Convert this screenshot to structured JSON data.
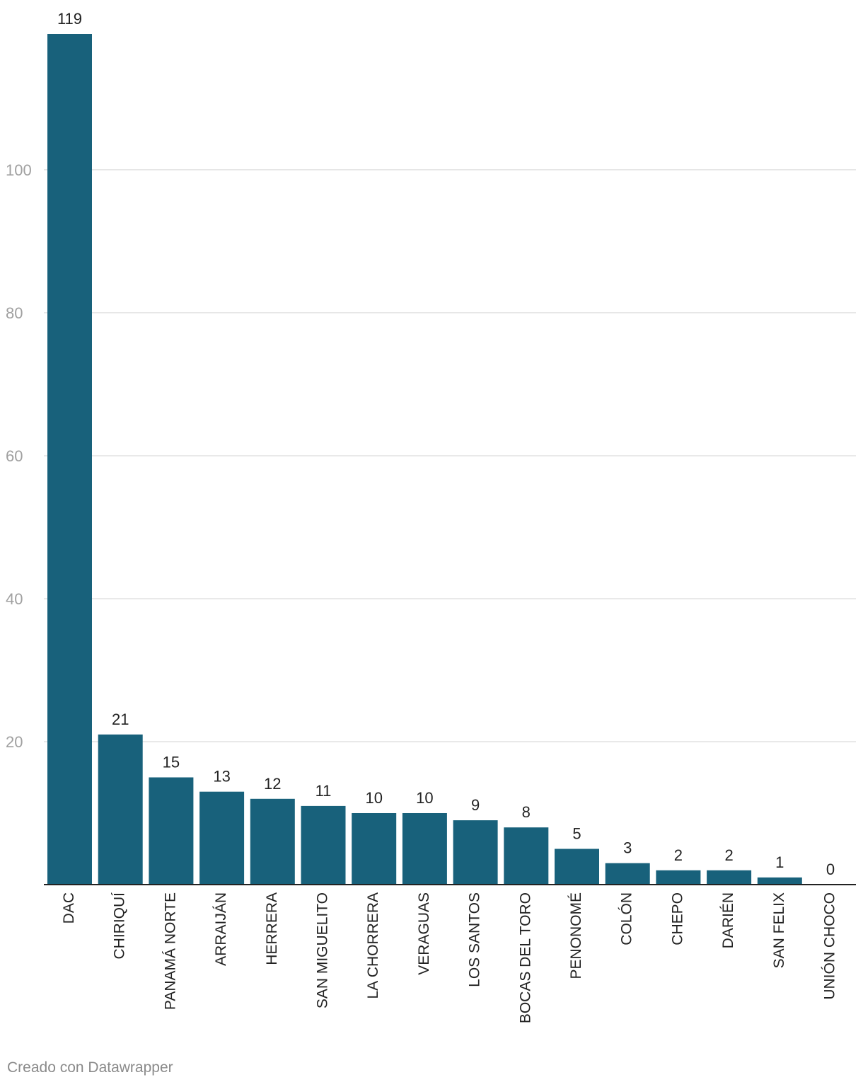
{
  "chart_data": {
    "type": "bar",
    "title": "",
    "xlabel": "",
    "ylabel": "",
    "categories": [
      "DAC",
      "CHIRIQUÍ",
      "PANAMÁ NORTE",
      "ARRAIJÁN",
      "HERRERA",
      "SAN MIGUELITO",
      "LA CHORRERA",
      "VERAGUAS",
      "LOS SANTOS",
      "BOCAS DEL TORO",
      "PENONOMÉ",
      "COLÓN",
      "CHEPO",
      "DARIÉN",
      "SAN FELIX",
      "UNIÓN CHOCO"
    ],
    "values": [
      119,
      21,
      15,
      13,
      12,
      11,
      10,
      10,
      9,
      8,
      5,
      3,
      2,
      2,
      1,
      0
    ],
    "ylim": [
      0,
      119
    ],
    "yticks": [
      20,
      40,
      60,
      80,
      100
    ],
    "grid": true,
    "legend": "none",
    "bar_color": "#18617b",
    "gridline_color": "#e2e2e2",
    "tick_label_color": "#a0a0a0",
    "value_label_color": "#222222"
  },
  "footer": {
    "credit": "Creado con Datawrapper"
  }
}
